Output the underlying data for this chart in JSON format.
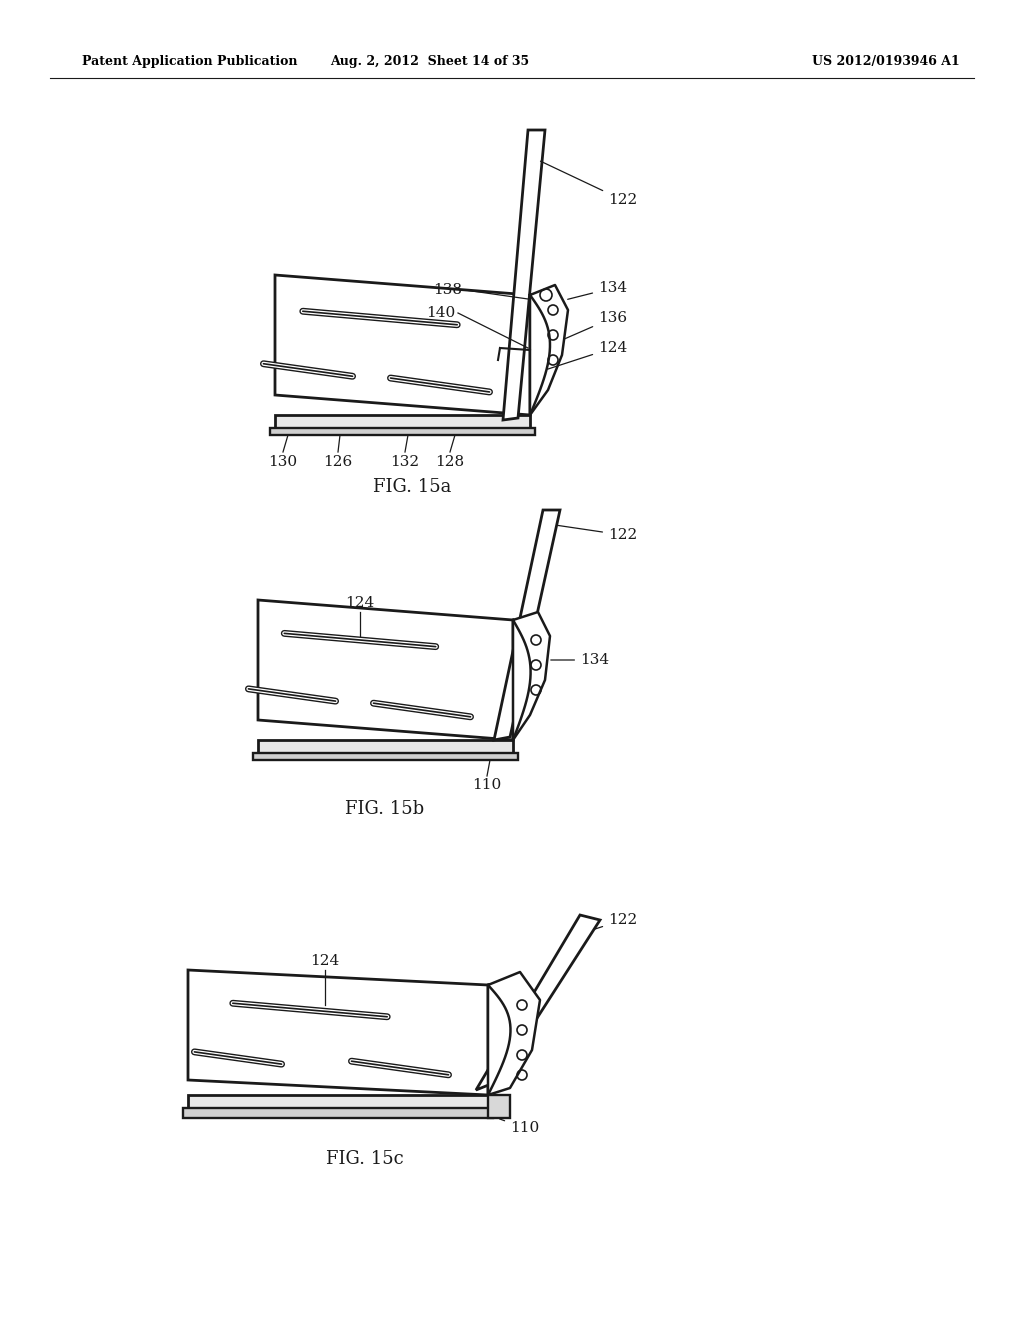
{
  "background_color": "#ffffff",
  "header_left": "Patent Application Publication",
  "header_mid": "Aug. 2, 2012  Sheet 14 of 35",
  "header_right": "US 2012/0193946 A1",
  "line_color": "#1a1a1a",
  "lw_main": 1.8,
  "lw_thick": 2.0,
  "font_label": 11,
  "font_fig": 13
}
